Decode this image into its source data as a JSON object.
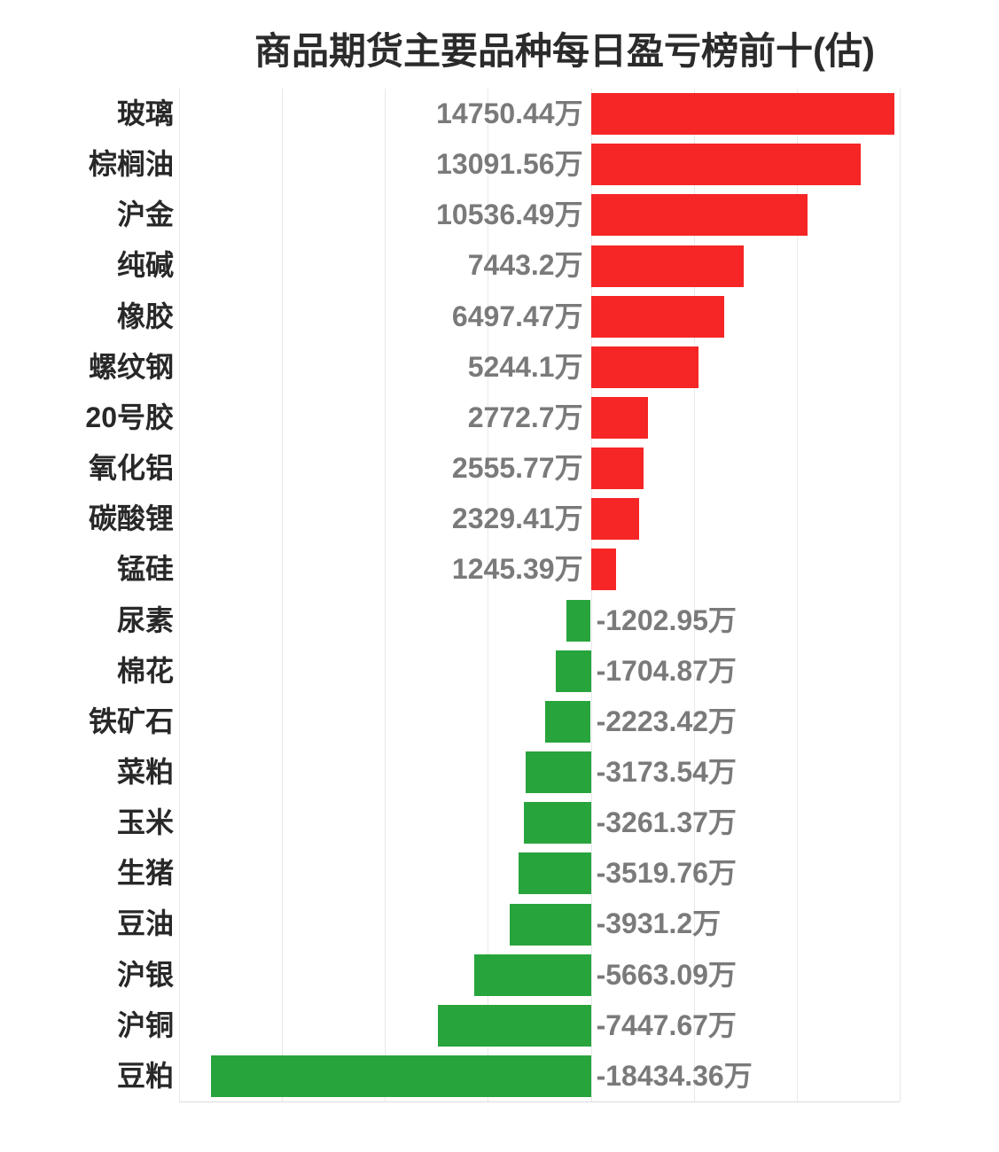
{
  "chart_data": {
    "type": "bar",
    "orientation": "horizontal",
    "title": "商品期货主要品种每日盈亏榜前十(估)",
    "unit": "万",
    "xlabel": "",
    "ylabel": "",
    "xlim": [
      -20000,
      15000
    ],
    "xticks": [
      -20000,
      -15000,
      -10000,
      -5000,
      0,
      5000,
      10000,
      15000
    ],
    "grid": true,
    "legend": false,
    "bar_colors": {
      "positive": "#f62626",
      "negative": "#28a43c"
    },
    "categories": [
      "玻璃",
      "棕榈油",
      "沪金",
      "纯碱",
      "橡胶",
      "螺纹钢",
      "20号胶",
      "氧化铝",
      "碳酸锂",
      "锰硅",
      "尿素",
      "棉花",
      "铁矿石",
      "菜粕",
      "玉米",
      "生猪",
      "豆油",
      "沪银",
      "沪铜",
      "豆粕"
    ],
    "values": [
      14750.44,
      13091.56,
      10536.49,
      7443.2,
      6497.47,
      5244.1,
      2772.7,
      2555.77,
      2329.41,
      1245.39,
      -1202.95,
      -1704.87,
      -2223.42,
      -3173.54,
      -3261.37,
      -3519.76,
      -3931.2,
      -5663.09,
      -7447.67,
      -18434.36
    ],
    "value_labels": [
      "14750.44万",
      "13091.56万",
      "10536.49万",
      "7443.2万",
      "6497.47万",
      "5244.1万",
      "2772.7万",
      "2555.77万",
      "2329.41万",
      "1245.39万",
      "-1202.95万",
      "-1704.87万",
      "-2223.42万",
      "-3173.54万",
      "-3261.37万",
      "-3519.76万",
      "-3931.2万",
      "-5663.09万",
      "-7447.67万",
      "-18434.36万"
    ],
    "text_colors": {
      "category": "#282828",
      "value": "#7a7a7a",
      "title": "#2b2b2b"
    }
  }
}
